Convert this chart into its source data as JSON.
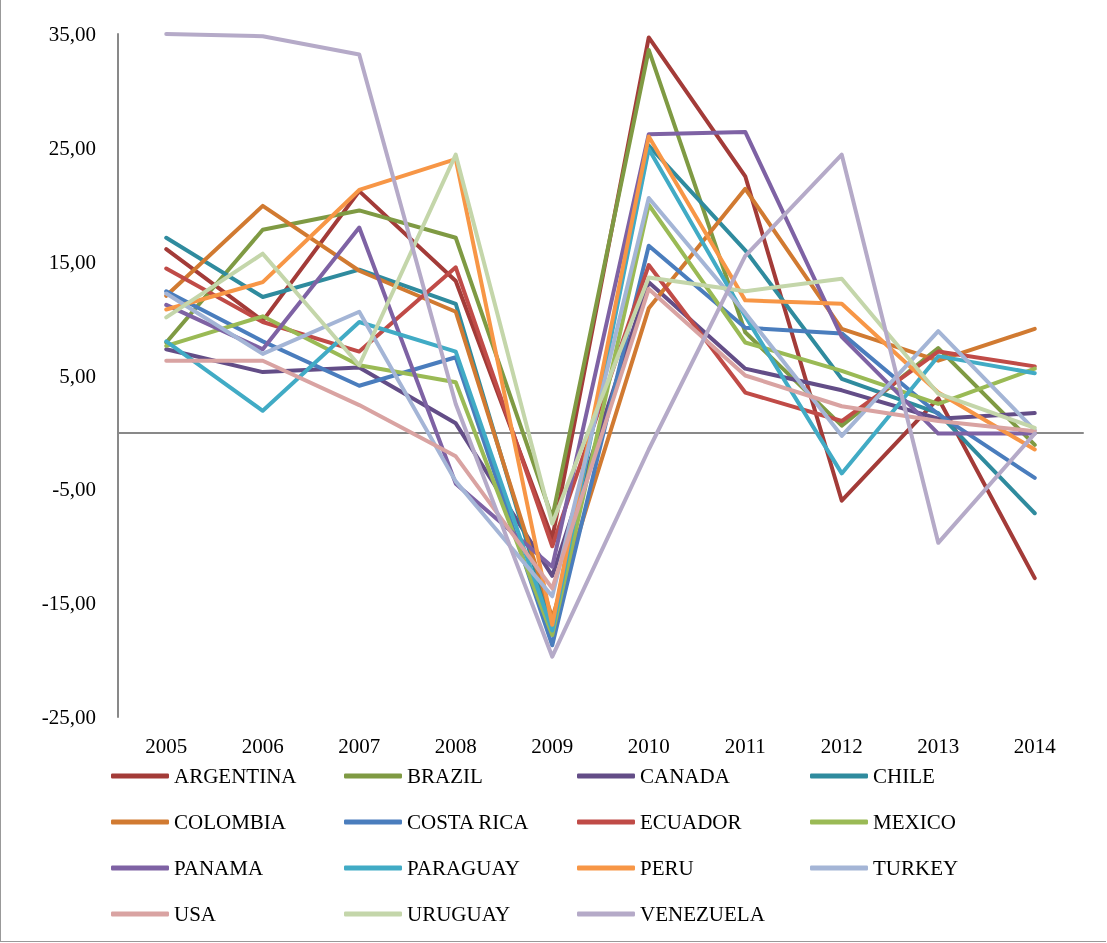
{
  "chart_data": {
    "type": "line",
    "categories": [
      "2005",
      "2006",
      "2007",
      "2008",
      "2009",
      "2010",
      "2011",
      "2012",
      "2013",
      "2014"
    ],
    "ylim": [
      -25,
      35
    ],
    "yticks": [
      {
        "value": -25,
        "label": "-25,00"
      },
      {
        "value": -15,
        "label": "-15,00"
      },
      {
        "value": -5,
        "label": "-5,00"
      },
      {
        "value": 5,
        "label": "5,00"
      },
      {
        "value": 15,
        "label": "15,00"
      },
      {
        "value": 25,
        "label": "25,00"
      },
      {
        "value": 35,
        "label": "35,00"
      }
    ],
    "legend": "bottom",
    "marker": "none",
    "line_style": "solid",
    "series": [
      {
        "name": "ARGENTINA",
        "color": "#a33b38",
        "values": [
          16.1,
          9.8,
          21.2,
          13.3,
          -9.3,
          34.7,
          22.5,
          -6.0,
          3.0,
          -12.8
        ]
      },
      {
        "name": "BRAZIL",
        "color": "#7f9a43",
        "values": [
          7.9,
          17.8,
          19.5,
          17.1,
          -7.5,
          33.6,
          8.8,
          0.6,
          7.4,
          -1.1
        ]
      },
      {
        "name": "CANADA",
        "color": "#634d87",
        "values": [
          7.3,
          5.3,
          5.7,
          0.8,
          -12.6,
          13.2,
          5.6,
          3.7,
          1.2,
          1.7
        ]
      },
      {
        "name": "CHILE",
        "color": "#2f8b9e",
        "values": [
          17.1,
          11.9,
          14.3,
          11.3,
          -17.1,
          25.2,
          16.0,
          4.7,
          1.7,
          -7.1
        ]
      },
      {
        "name": "COLOMBIA",
        "color": "#d17a31",
        "values": [
          12.0,
          19.9,
          14.2,
          10.6,
          -16.3,
          10.9,
          21.4,
          9.1,
          6.3,
          9.1
        ]
      },
      {
        "name": "COSTA RICA",
        "color": "#4a7dbd",
        "values": [
          12.4,
          8.0,
          4.1,
          6.6,
          -18.7,
          16.4,
          9.2,
          8.7,
          1.6,
          -4.0
        ]
      },
      {
        "name": "ECUADOR",
        "color": "#c04b47",
        "values": [
          14.4,
          9.7,
          7.1,
          14.5,
          -10.0,
          14.7,
          3.5,
          1.0,
          7.1,
          5.8
        ]
      },
      {
        "name": "MEXICO",
        "color": "#9aba55",
        "values": [
          7.6,
          10.2,
          5.9,
          4.4,
          -17.8,
          20.0,
          7.9,
          5.4,
          2.5,
          5.6
        ]
      },
      {
        "name": "PANAMA",
        "color": "#7e62a4",
        "values": [
          11.2,
          7.3,
          18.0,
          -4.5,
          -11.8,
          26.2,
          26.4,
          8.4,
          -0.1,
          -0.1
        ]
      },
      {
        "name": "PARAGUAY",
        "color": "#41abc5",
        "values": [
          8.0,
          1.9,
          9.7,
          7.1,
          -17.4,
          24.9,
          10.2,
          -3.6,
          6.7,
          5.2
        ]
      },
      {
        "name": "PERU",
        "color": "#f79646",
        "values": [
          10.8,
          13.2,
          21.3,
          24.0,
          -16.9,
          26.0,
          11.6,
          11.3,
          3.5,
          -1.5
        ]
      },
      {
        "name": "TURKEY",
        "color": "#a4b5d6",
        "values": [
          12.2,
          6.9,
          10.6,
          -4.3,
          -14.4,
          20.6,
          10.5,
          -0.3,
          8.9,
          0.2
        ]
      },
      {
        "name": "USA",
        "color": "#d9a3a2",
        "values": [
          6.3,
          6.3,
          2.4,
          -2.1,
          -13.7,
          12.6,
          5.0,
          2.3,
          1.0,
          0.1
        ]
      },
      {
        "name": "URUGUAY",
        "color": "#c4d6aa",
        "values": [
          10.1,
          15.7,
          5.9,
          24.4,
          -8.0,
          13.6,
          12.4,
          13.5,
          3.4,
          0.4
        ]
      },
      {
        "name": "VENEZUELA",
        "color": "#b5aac8",
        "values": [
          35.0,
          34.8,
          33.2,
          2.5,
          -19.7,
          -1.5,
          15.5,
          24.4,
          -9.7,
          -0.1
        ]
      }
    ]
  }
}
